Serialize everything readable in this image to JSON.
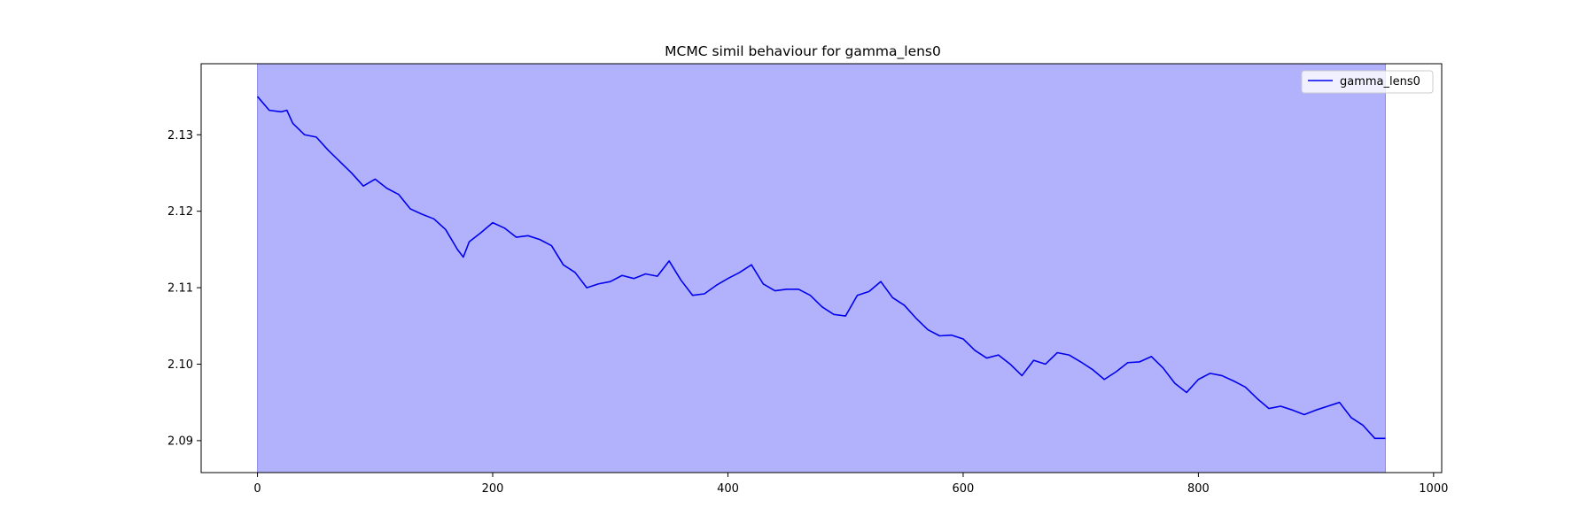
{
  "chart_data": {
    "type": "line",
    "title": "MCMC simil behaviour for gamma_lens0",
    "xlabel": "",
    "ylabel": "",
    "xlim": [
      -47.9,
      1006.9
    ],
    "ylim": [
      2.08582,
      2.13929
    ],
    "x_ticks": [
      0,
      200,
      400,
      600,
      800,
      1000
    ],
    "x_tick_labels": [
      "0",
      "200",
      "400",
      "600",
      "800",
      "1000"
    ],
    "y_ticks": [
      2.09,
      2.1,
      2.11,
      2.12,
      2.13
    ],
    "y_tick_labels": [
      "2.09",
      "2.10",
      "2.11",
      "2.12",
      "2.13"
    ],
    "grid": false,
    "legend_position": "top-right",
    "shaded_region": {
      "x_start": 0,
      "x_end": 959,
      "color": "#b2b2fc",
      "edge_color": "#8a8ae6"
    },
    "series": [
      {
        "name": "gamma_lens0",
        "color": "#0000ee",
        "x": [
          0,
          10,
          20,
          25,
          30,
          40,
          50,
          60,
          70,
          80,
          90,
          100,
          110,
          120,
          130,
          140,
          150,
          160,
          170,
          175,
          180,
          190,
          200,
          210,
          220,
          230,
          240,
          250,
          260,
          270,
          280,
          290,
          300,
          310,
          320,
          330,
          340,
          350,
          360,
          370,
          380,
          390,
          400,
          410,
          420,
          430,
          440,
          450,
          460,
          470,
          480,
          490,
          500,
          510,
          520,
          530,
          540,
          550,
          560,
          570,
          580,
          590,
          600,
          610,
          620,
          630,
          640,
          650,
          660,
          670,
          680,
          690,
          700,
          710,
          720,
          730,
          740,
          750,
          760,
          770,
          780,
          790,
          800,
          810,
          820,
          830,
          840,
          850,
          860,
          870,
          880,
          890,
          900,
          910,
          920,
          930,
          940,
          950,
          959
        ],
        "y": [
          2.135,
          2.1332,
          2.133,
          2.1332,
          2.1315,
          2.13,
          2.1297,
          2.128,
          2.1265,
          2.125,
          2.1233,
          2.1242,
          2.123,
          2.1222,
          2.1203,
          2.1196,
          2.119,
          2.1176,
          2.115,
          2.114,
          2.116,
          2.1172,
          2.1185,
          2.1178,
          2.1166,
          2.1168,
          2.1163,
          2.1155,
          2.113,
          2.112,
          2.11,
          2.1105,
          2.1108,
          2.1116,
          2.1112,
          2.1118,
          2.1115,
          2.1135,
          2.111,
          2.109,
          2.1092,
          2.1103,
          2.1112,
          2.112,
          2.113,
          2.1105,
          2.1096,
          2.1098,
          2.1098,
          2.109,
          2.1075,
          2.1065,
          2.1063,
          2.109,
          2.1095,
          2.1108,
          2.1087,
          2.1077,
          2.106,
          2.1045,
          2.1037,
          2.1038,
          2.1033,
          2.1018,
          2.1008,
          2.1012,
          2.1,
          2.0985,
          2.1005,
          2.1,
          2.1015,
          2.1012,
          2.1003,
          2.0993,
          2.098,
          2.099,
          2.1002,
          2.1003,
          2.101,
          2.0995,
          2.0975,
          2.0963,
          2.098,
          2.0988,
          2.0985,
          2.0978,
          2.097,
          2.0955,
          2.0942,
          2.0945,
          2.094,
          2.0934,
          2.094,
          2.0945,
          2.095,
          2.093,
          2.092,
          2.0903,
          2.0903
        ]
      }
    ]
  }
}
